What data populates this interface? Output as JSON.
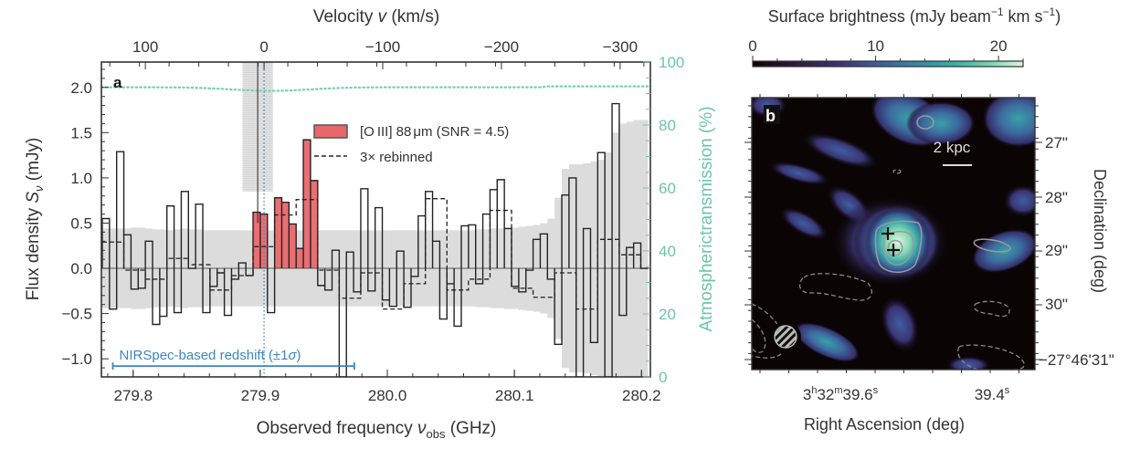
{
  "chart_data": [
    {
      "panel": "a",
      "type": "line",
      "subtype": "step-spectrum",
      "title": "",
      "xlabel": "Observed frequency ν_obs (GHz)",
      "xlabel_main": "Observed frequency ",
      "xlabel_sym": "ν",
      "xlabel_sub": "obs",
      "xlabel_unit": " (GHz)",
      "ylabel": "Flux density S_ν (mJy)",
      "ylabel_main": "Flux density ",
      "ylabel_sym": "S",
      "ylabel_sub": "ν",
      "ylabel_unit": " (mJy)",
      "top_xlabel": "Velocity v (km/s)",
      "top_xlabel_main": "Velocity ",
      "top_xlabel_sym": "v",
      "top_xlabel_unit": " (km/s)",
      "right_ylabel": "Atmospherictransmission (%)",
      "xlim": [
        279.775,
        280.207
      ],
      "ylim": [
        -1.2,
        2.28
      ],
      "right_ylim": [
        0,
        100
      ],
      "xticks": [
        279.8,
        279.9,
        280.0,
        280.1,
        280.2
      ],
      "xtick_labels": [
        "279.8",
        "279.9",
        "280.0",
        "280.1",
        "280.2"
      ],
      "yticks": [
        -1.0,
        -0.5,
        0.0,
        0.5,
        1.0,
        1.5,
        2.0
      ],
      "ytick_labels": [
        "−1.0",
        "−0.5",
        "0.0",
        "0.5",
        "1.0",
        "1.5",
        "2.0"
      ],
      "top_ticks_kms": [
        100,
        0,
        -100,
        -200,
        -300
      ],
      "top_tick_labels": [
        "100",
        "0",
        "−100",
        "−200",
        "−300"
      ],
      "right_ticks": [
        0,
        20,
        40,
        60,
        80,
        100
      ],
      "right_tick_labels": [
        "0",
        "20",
        "40",
        "60",
        "80",
        "100"
      ],
      "velocity_zero_ghz": 279.903,
      "velocity_ghz_per_kms": -0.000934,
      "bin_start_ghz": 279.7757,
      "bin_width_ghz": 0.00565,
      "spectrum_mJy": [
        0.55,
        -0.45,
        1.29,
        0.37,
        -0.23,
        -0.22,
        0.3,
        -0.62,
        -0.53,
        0.69,
        -0.49,
        0.85,
        0.0,
        0.71,
        -0.49,
        -0.2,
        -0.05,
        -0.52,
        -0.12,
        0.06,
        -0.08,
        0.62,
        0.6,
        -0.49,
        0.78,
        0.73,
        0.49,
        0.22,
        1.42,
        0.97,
        -0.19,
        -0.24,
        0.2,
        -1.2,
        0.18,
        -0.26,
        0.88,
        -0.25,
        0.67,
        -0.35,
        -0.42,
        0.19,
        -0.43,
        -0.09,
        0.58,
        0.85,
        0.3,
        -0.56,
        -0.17,
        -0.64,
        0.47,
        0.48,
        -0.17,
        0.6,
        0.87,
        0.98,
        0.44,
        -0.2,
        -0.26,
        -0.02,
        0.32,
        0.38,
        -0.12,
        -0.84,
        0.81,
        1.0,
        -1.2,
        0.44,
        -0.82,
        1.28,
        -1.2,
        1.82,
        -0.52,
        0.23,
        0.28,
        0.0
      ],
      "rebinned_3x_mJy": [
        0.29,
        0.29,
        0.29,
        -0.02,
        -0.02,
        -0.02,
        -0.12,
        -0.12,
        -0.12,
        0.11,
        0.11,
        0.11,
        0.04,
        0.04,
        0.04,
        -0.24,
        -0.24,
        -0.24,
        -0.08,
        -0.08,
        -0.08,
        0.24,
        0.24,
        0.24,
        0.59,
        0.59,
        0.59,
        0.76,
        0.76,
        0.76,
        -0.02,
        -0.02,
        -0.02,
        -0.33,
        -0.33,
        -0.33,
        -0.05,
        -0.05,
        -0.05,
        -0.45,
        -0.45,
        -0.45,
        -0.17,
        -0.17,
        -0.17,
        0.77,
        0.77,
        0.77,
        -0.24,
        -0.24,
        -0.24,
        -0.12,
        -0.12,
        -0.12,
        0.64,
        0.64,
        0.64,
        -0.22,
        -0.22,
        -0.22,
        -0.32,
        -0.32,
        -0.32,
        -0.05,
        -0.05,
        -0.05,
        -0.45,
        -0.45,
        -0.45,
        0.32,
        0.32,
        0.32,
        0.15,
        0.15,
        0.15,
        0.0
      ],
      "line_bins_highlight": [
        21,
        29
      ],
      "noise_1sigma_mJy_upper": [
        0.44,
        0.44,
        0.44,
        0.44,
        0.45,
        0.45,
        0.44,
        0.43,
        0.43,
        0.42,
        0.43,
        0.44,
        0.43,
        0.43,
        0.42,
        0.42,
        0.42,
        0.42,
        0.42,
        0.42,
        0.42,
        0.42,
        0.42,
        0.42,
        0.42,
        0.42,
        0.42,
        0.42,
        0.42,
        0.42,
        0.42,
        0.42,
        0.42,
        0.42,
        0.42,
        0.42,
        0.42,
        0.42,
        0.42,
        0.42,
        0.42,
        0.42,
        0.42,
        0.42,
        0.42,
        0.42,
        0.42,
        0.42,
        0.42,
        0.42,
        0.42,
        0.42,
        0.43,
        0.43,
        0.44,
        0.44,
        0.45,
        0.45,
        0.46,
        0.47,
        0.48,
        0.5,
        0.55,
        0.78,
        1.1,
        1.15,
        1.15,
        1.16,
        1.18,
        1.2,
        1.28,
        1.5,
        1.6,
        1.62,
        1.64,
        1.64
      ],
      "atmospheric_transmission_pct": 92,
      "legend": [
        {
          "label": "[O III] 88 μm (SNR = 4.5)",
          "label_a": "[O",
          "label_b": "III] 88",
          "label_c": "μm (SNR = 4.5)",
          "style": "filled",
          "color": "#e8676a"
        },
        {
          "label": "3× rebinned",
          "style": "dashed",
          "color": "#222222"
        }
      ],
      "legend_placement": "upper-center",
      "annotation_redshift": {
        "label": "NIRSpec-based redshift (±1σ)",
        "label_main": "NIRSpec-based redshift (±1",
        "label_sigma": "σ",
        "label_end": ")",
        "center_ghz": 279.903,
        "low_ghz": 279.784,
        "high_ghz": 279.974,
        "color": "#3d86c0"
      },
      "shaded_vline": {
        "center_ghz": 279.898,
        "half_width_ghz": 0.012
      },
      "colors": {
        "spectrum": "#222222",
        "line_fill": "#e8676a",
        "noise_band": "#dcdcdc",
        "transmission": "#78cfb0",
        "redshift": "#3d86c0"
      }
    },
    {
      "panel": "b",
      "type": "heatmap",
      "title": "",
      "colorbar_label": "Surface brightness (mJy beam⁻¹ km s⁻¹)",
      "colorbar_label_main": "Surface brightness (mJy beam",
      "colorbar_label_exp1": "−1",
      "colorbar_label_mid": " km s",
      "colorbar_label_exp2": "−1",
      "colorbar_label_end": ")",
      "colorbar_range": [
        0,
        22
      ],
      "colorbar_ticks": [
        0,
        10,
        20
      ],
      "colorbar_tick_labels": [
        "0",
        "10",
        "20"
      ],
      "colormap": "mako",
      "xlabel": "Right Ascension (deg)",
      "ylabel": "Declination (deg)",
      "xtick_labels": [
        {
          "h": "3",
          "hs": "h",
          "m": "32",
          "ms": "m",
          "s": "39.6",
          "ss": "s"
        },
        {
          "h": "",
          "hs": "",
          "m": "",
          "ms": "",
          "s": "39.4",
          "ss": "s"
        }
      ],
      "ytick_labels": [
        "27\"",
        "28\"",
        "29\"",
        "30\"",
        "−27°46'31\""
      ],
      "scale_bar_label": "2 kpc",
      "markers": [
        "cross",
        "cross"
      ],
      "beam": "hatched ellipse (bottom-left)",
      "contours": "solid positive, dashed negative (grey)"
    }
  ],
  "panel_labels": {
    "a": "a",
    "b": "b"
  }
}
